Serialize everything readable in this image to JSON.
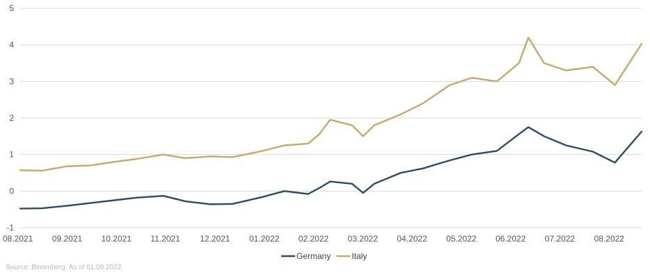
{
  "source_note": "Source: Bloomberg, As of 01.09.2022",
  "colors": {
    "Germany": "#2c4a66",
    "Italy": "#c8a76a",
    "grid": "#d9d9d9"
  },
  "chart_data": {
    "type": "line",
    "title": "",
    "xlabel": "",
    "ylabel": "",
    "ylim": [
      -1,
      5
    ],
    "y_ticks": [
      -1,
      0,
      1,
      2,
      3,
      4,
      5
    ],
    "x_tick_labels": [
      "08.2021",
      "09.2021",
      "10.2021",
      "11.2021",
      "12.2021",
      "01.2022",
      "02.2022",
      "03.2022",
      "04.2022",
      "05.2022",
      "06.2022",
      "07.2022",
      "08.2022"
    ],
    "grid": "horizontal",
    "legend_position": "bottom",
    "x": [
      "2021-08-02",
      "2021-08-16",
      "2021-09-01",
      "2021-09-15",
      "2021-10-01",
      "2021-10-15",
      "2021-11-01",
      "2021-11-15",
      "2021-12-01",
      "2021-12-15",
      "2022-01-03",
      "2022-01-17",
      "2022-02-01",
      "2022-02-08",
      "2022-02-15",
      "2022-03-01",
      "2022-03-08",
      "2022-03-15",
      "2022-04-01",
      "2022-04-15",
      "2022-05-02",
      "2022-05-16",
      "2022-06-01",
      "2022-06-15",
      "2022-06-21",
      "2022-07-01",
      "2022-07-15",
      "2022-08-01",
      "2022-08-15",
      "2022-09-01"
    ],
    "series": [
      {
        "name": "Germany",
        "values": [
          -0.48,
          -0.47,
          -0.4,
          -0.33,
          -0.25,
          -0.18,
          -0.13,
          -0.28,
          -0.36,
          -0.35,
          -0.16,
          0.0,
          -0.08,
          0.08,
          0.26,
          0.2,
          -0.05,
          0.2,
          0.5,
          0.62,
          0.84,
          1.0,
          1.1,
          1.56,
          1.75,
          1.5,
          1.25,
          1.08,
          0.78,
          1.63
        ]
      },
      {
        "name": "Italy",
        "values": [
          0.57,
          0.56,
          0.68,
          0.7,
          0.8,
          0.88,
          1.0,
          0.9,
          0.95,
          0.93,
          1.1,
          1.25,
          1.3,
          1.55,
          1.95,
          1.8,
          1.5,
          1.8,
          2.1,
          2.4,
          2.9,
          3.1,
          3.0,
          3.5,
          4.2,
          3.5,
          3.3,
          3.4,
          2.9,
          4.03
        ]
      }
    ]
  }
}
